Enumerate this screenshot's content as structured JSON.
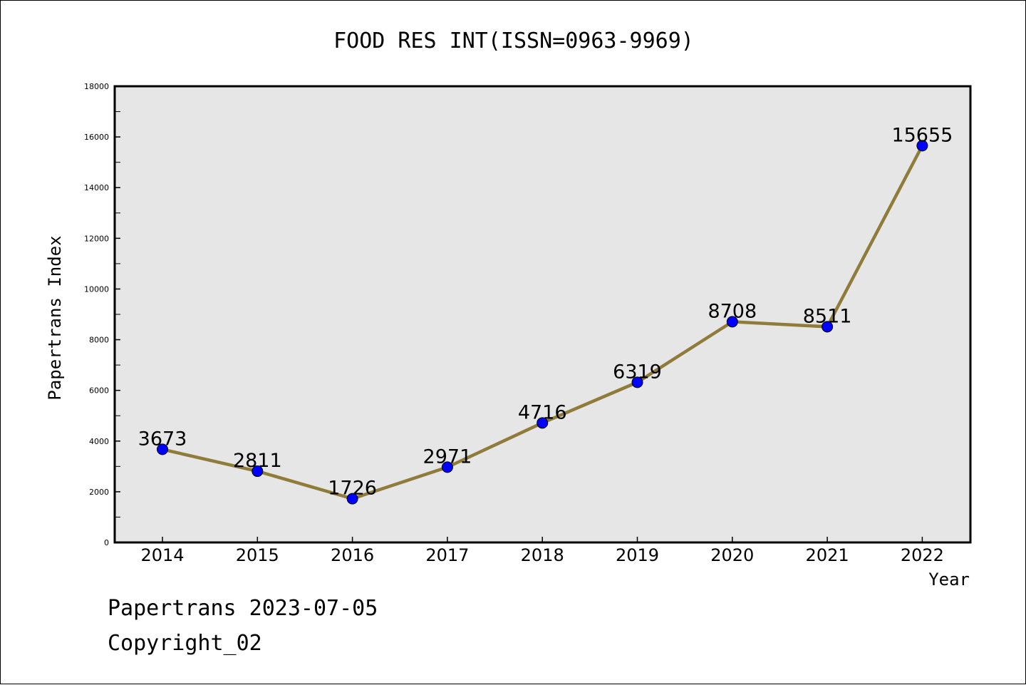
{
  "chart_data": {
    "type": "line",
    "title": "FOOD RES INT(ISSN=0963-9969)",
    "xlabel": "Year",
    "ylabel": "Papertrans Index",
    "categories": [
      "2014",
      "2015",
      "2016",
      "2017",
      "2018",
      "2019",
      "2020",
      "2021",
      "2022"
    ],
    "series": [
      {
        "values": [
          3673,
          2811,
          1726,
          2971,
          4716,
          6319,
          8708,
          8511,
          15655
        ]
      }
    ],
    "data_labels": [
      "3673",
      "2811",
      "1726",
      "2971",
      "4716",
      "6319",
      "8708",
      "8511",
      "15655"
    ],
    "ylim": [
      0,
      18000
    ],
    "yticks": [
      0,
      2000,
      4000,
      6000,
      8000,
      10000,
      12000,
      14000,
      16000,
      18000
    ],
    "ytick_labels": [
      "0",
      "2000",
      "4000",
      "6000",
      "8000",
      "10000",
      "12000",
      "14000",
      "16000",
      "18000"
    ],
    "y_minor_step": 1000,
    "grid": false,
    "colors": {
      "line": "#8f7b3a",
      "marker": "#0000ff",
      "plot_background": "#e6e6e6"
    }
  },
  "footer": {
    "line1": "Papertrans 2023-07-05",
    "line2": "Copyright_02"
  }
}
